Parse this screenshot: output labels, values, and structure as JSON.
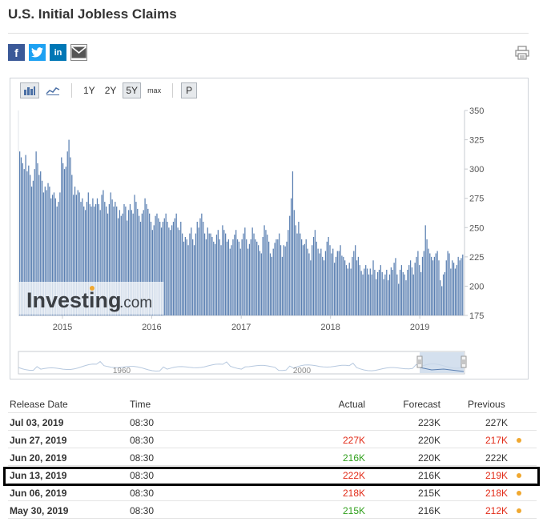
{
  "title": "U.S. Initial Jobless Claims",
  "share_icons": [
    "facebook-icon",
    "twitter-icon",
    "linkedin-icon",
    "email-icon"
  ],
  "toolbar": {
    "ranges": [
      "1Y",
      "2Y",
      "5Y",
      "max"
    ],
    "active_range": "5Y",
    "p_label": "P"
  },
  "watermark": {
    "brand": "Investing",
    "suffix": ".com"
  },
  "colors": {
    "bar": "#5b80b2",
    "red": "#e22b18",
    "green": "#30a01c",
    "dot": "#f0a830"
  },
  "chart_data": {
    "type": "bar",
    "ylim": [
      175,
      350
    ],
    "yticks": [
      175,
      200,
      225,
      250,
      275,
      300,
      325,
      350
    ],
    "xticks": [
      "2015",
      "2016",
      "2017",
      "2018",
      "2019"
    ],
    "x_start": "2014-07-05",
    "x_end": "2019-07-03",
    "values": [
      315,
      310,
      305,
      300,
      312,
      298,
      303,
      295,
      285,
      290,
      300,
      315,
      305,
      295,
      298,
      290,
      280,
      285,
      282,
      288,
      285,
      275,
      278,
      280,
      275,
      268,
      272,
      280,
      310,
      305,
      300,
      302,
      315,
      325,
      310,
      295,
      278,
      285,
      278,
      282,
      280,
      272,
      275,
      268,
      265,
      272,
      280,
      270,
      268,
      275,
      268,
      270,
      275,
      270,
      265,
      278,
      282,
      272,
      268,
      262,
      270,
      280,
      274,
      268,
      272,
      268,
      258,
      265,
      260,
      262,
      270,
      268,
      256,
      265,
      270,
      265,
      262,
      278,
      272,
      266,
      260,
      255,
      262,
      265,
      275,
      270,
      266,
      262,
      255,
      248,
      252,
      260,
      262,
      258,
      255,
      250,
      255,
      258,
      262,
      255,
      250,
      248,
      252,
      255,
      258,
      262,
      250,
      248,
      255,
      245,
      238,
      242,
      240,
      235,
      245,
      250,
      240,
      235,
      245,
      255,
      250,
      258,
      262,
      255,
      245,
      240,
      250,
      245,
      245,
      242,
      238,
      236,
      244,
      248,
      240,
      235,
      252,
      248,
      245,
      238,
      240,
      232,
      235,
      240,
      244,
      248,
      240,
      238,
      232,
      240,
      245,
      250,
      240,
      232,
      236,
      240,
      250,
      245,
      240,
      238,
      235,
      230,
      228,
      242,
      252,
      248,
      244,
      238,
      228,
      225,
      232,
      237,
      240,
      240,
      245,
      235,
      225,
      235,
      234,
      238,
      248,
      260,
      275,
      298,
      265,
      252,
      245,
      255,
      245,
      240,
      235,
      236,
      240,
      232,
      228,
      222,
      235,
      242,
      248,
      238,
      232,
      228,
      232,
      225,
      222,
      230,
      238,
      242,
      235,
      228,
      232,
      220,
      225,
      230,
      230,
      235,
      226,
      225,
      222,
      218,
      215,
      220,
      215,
      225,
      230,
      235,
      222,
      225,
      218,
      213,
      210,
      215,
      218,
      215,
      210,
      215,
      210,
      222,
      214,
      206,
      212,
      214,
      218,
      212,
      206,
      210,
      214,
      205,
      210,
      216,
      214,
      220,
      224,
      210,
      202,
      214,
      218,
      212,
      210,
      205,
      214,
      218,
      222,
      216,
      210,
      220,
      225,
      230,
      218,
      212,
      225,
      230,
      252,
      240,
      232,
      228,
      225,
      222,
      225,
      228,
      230,
      222,
      205,
      200,
      210,
      212,
      222,
      230,
      228,
      215,
      222,
      220,
      215,
      218,
      225,
      222,
      224,
      227
    ]
  },
  "navigator": {
    "labels": [
      "1960",
      "2000"
    ]
  },
  "table": {
    "headers": [
      "Release Date",
      "Time",
      "Actual",
      "Forecast",
      "Previous"
    ],
    "rows": [
      {
        "date": "Jul 03, 2019",
        "time": "08:30",
        "actual": "",
        "actual_color": "dark",
        "forecast": "223K",
        "previous": "227K",
        "previous_color": "dark",
        "dot": false
      },
      {
        "date": "Jun 27, 2019",
        "time": "08:30",
        "actual": "227K",
        "actual_color": "red",
        "forecast": "220K",
        "previous": "217K",
        "previous_color": "red",
        "dot": true
      },
      {
        "date": "Jun 20, 2019",
        "time": "08:30",
        "actual": "216K",
        "actual_color": "green",
        "forecast": "220K",
        "previous": "222K",
        "previous_color": "dark",
        "dot": false
      },
      {
        "date": "Jun 13, 2019",
        "time": "08:30",
        "actual": "222K",
        "actual_color": "red",
        "forecast": "216K",
        "previous": "219K",
        "previous_color": "red",
        "dot": true
      },
      {
        "date": "Jun 06, 2019",
        "time": "08:30",
        "actual": "218K",
        "actual_color": "red",
        "forecast": "215K",
        "previous": "218K",
        "previous_color": "red",
        "dot": true
      },
      {
        "date": "May 30, 2019",
        "time": "08:30",
        "actual": "215K",
        "actual_color": "green",
        "forecast": "216K",
        "previous": "212K",
        "previous_color": "red",
        "dot": true
      }
    ]
  }
}
